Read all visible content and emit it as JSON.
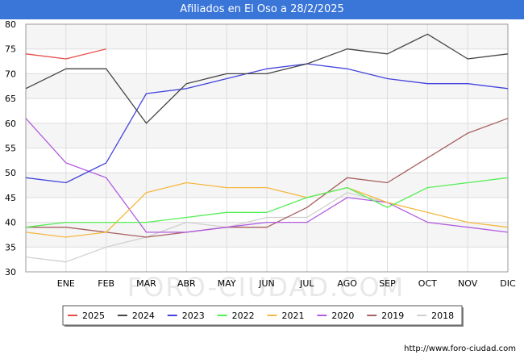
{
  "title": "Afiliados en El Oso a 28/2/2025",
  "source_url": "http://www.foro-ciudad.com",
  "watermark": "FORO-CIUDAD.COM",
  "chart_data": {
    "type": "line",
    "title": "Afiliados en El Oso a 28/2/2025",
    "xlabel": "",
    "ylabel": "",
    "categories": [
      "",
      "ENE",
      "FEB",
      "MAR",
      "ABR",
      "MAY",
      "JUN",
      "JUL",
      "AGO",
      "SEP",
      "OCT",
      "NOV",
      "DIC"
    ],
    "ylim": [
      30,
      80
    ],
    "yticks": [
      30,
      35,
      40,
      45,
      50,
      55,
      60,
      65,
      70,
      75,
      80
    ],
    "grid": true,
    "legend_position": "bottom",
    "series": [
      {
        "name": "2025",
        "color": "#e84a4a",
        "values": [
          74,
          73,
          75,
          null,
          null,
          null,
          null,
          null,
          null,
          null,
          null,
          null,
          null
        ]
      },
      {
        "name": "2024",
        "color": "#444444",
        "values": [
          67,
          71,
          71,
          60,
          68,
          70,
          70,
          72,
          75,
          74,
          78,
          73,
          74
        ]
      },
      {
        "name": "2023",
        "color": "#4444dd",
        "values": [
          49,
          48,
          52,
          66,
          67,
          69,
          71,
          72,
          71,
          69,
          68,
          68,
          67
        ]
      },
      {
        "name": "2022",
        "color": "#55ee55",
        "values": [
          39,
          40,
          40,
          40,
          41,
          42,
          42,
          45,
          47,
          43,
          47,
          48,
          49
        ]
      },
      {
        "name": "2021",
        "color": "#f5b840",
        "values": [
          38,
          37,
          38,
          46,
          48,
          47,
          47,
          45,
          47,
          44,
          42,
          40,
          39
        ]
      },
      {
        "name": "2020",
        "color": "#b35ce0",
        "values": [
          61,
          52,
          49,
          38,
          38,
          39,
          40,
          40,
          45,
          44,
          40,
          39,
          38
        ]
      },
      {
        "name": "2019",
        "color": "#a86060",
        "values": [
          39,
          39,
          38,
          37,
          38,
          39,
          39,
          43,
          49,
          48,
          53,
          58,
          61
        ]
      },
      {
        "name": "2018",
        "color": "#d0d0d0",
        "values": [
          33,
          32,
          35,
          37,
          40,
          39,
          41,
          41,
          46,
          44,
          null,
          null,
          null
        ]
      }
    ]
  }
}
